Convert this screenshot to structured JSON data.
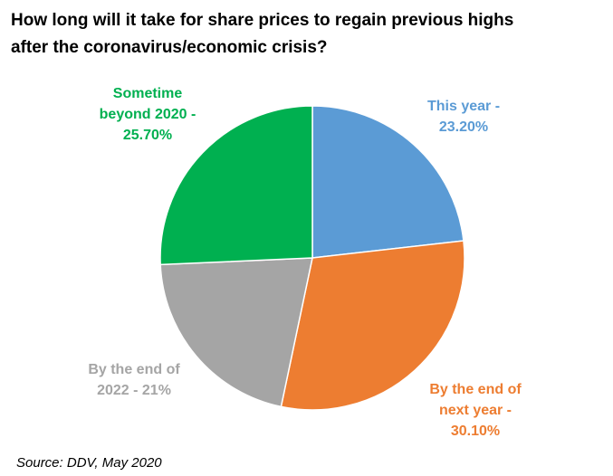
{
  "chart_data": {
    "type": "pie",
    "title_lines": [
      "How long will it take for share prices to regain previous highs",
      "after the coronavirus/economic crisis?"
    ],
    "start_angle_deg": 0,
    "direction": "clockwise",
    "slices": [
      {
        "label_lines": [
          "This year -",
          "23.20%"
        ],
        "value": 23.2,
        "color": "#5B9BD5"
      },
      {
        "label_lines": [
          "By the end of",
          "next year -",
          "30.10%"
        ],
        "value": 30.1,
        "color": "#ED7D31"
      },
      {
        "label_lines": [
          "By the end of",
          "2022 - 21%"
        ],
        "value": 21.0,
        "color": "#A5A5A5"
      },
      {
        "label_lines": [
          "Sometime",
          "beyond 2020 -",
          "25.70%"
        ],
        "value": 25.7,
        "color": "#00B050"
      }
    ],
    "legend": "none"
  },
  "source": "Source: DDV, May 2020"
}
